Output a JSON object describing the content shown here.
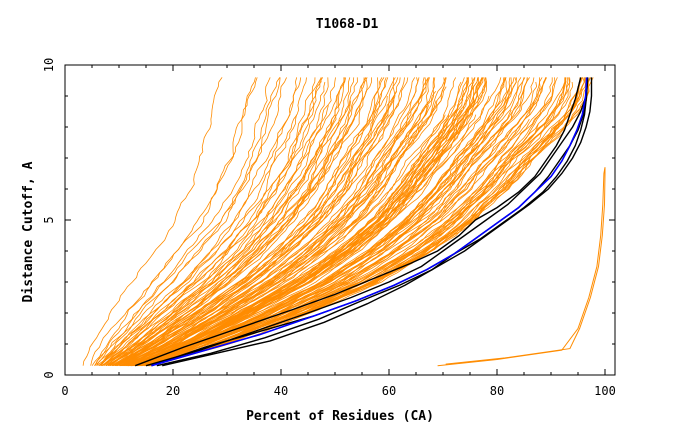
{
  "chart_data": {
    "type": "line",
    "title": "T1068-D1",
    "xlabel": "Percent of Residues (CA)",
    "ylabel": "Distance Cutoff, A",
    "xlim": [
      0,
      100
    ],
    "ylim": [
      0,
      10
    ],
    "x_ticks": [
      "0",
      "20",
      "40",
      "60",
      "80",
      "100"
    ],
    "y_ticks": [
      "0",
      "5",
      "10"
    ],
    "colors": {
      "bundle": "#ff8c00",
      "highlight": "#000000",
      "best": "#0000ff"
    },
    "ensemble_note": "about 150 orange model curves spanning the region between the left and right envelopes",
    "envelope_left": {
      "x": [
        3.5,
        5,
        8,
        12,
        16,
        20,
        23,
        25,
        26,
        27,
        28,
        29
      ],
      "y": [
        0.3,
        1.0,
        2.0,
        3.0,
        4.0,
        5.0,
        6.0,
        7.0,
        7.6,
        8.2,
        9.0,
        9.6
      ]
    },
    "envelope_right": {
      "x": [
        16,
        30,
        45,
        58,
        68,
        76,
        82,
        87,
        91,
        94,
        96,
        97,
        97.5,
        97.5
      ],
      "y": [
        0.3,
        1.0,
        2.0,
        3.0,
        4.0,
        5.0,
        6.0,
        7.0,
        7.7,
        8.3,
        8.8,
        9.2,
        9.5,
        9.6
      ]
    },
    "outlier_series": {
      "name": "outlier",
      "x": [
        69,
        80,
        92,
        95,
        97,
        98.5,
        99.2,
        99.6,
        99.8,
        100
      ],
      "y": [
        0.3,
        0.5,
        0.8,
        1.5,
        2.5,
        3.5,
        4.5,
        5.5,
        6.5,
        6.7
      ]
    },
    "series": [
      {
        "name": "black-1",
        "x": [
          15,
          25,
          35,
          45,
          53,
          60,
          66,
          70,
          74,
          78,
          82,
          85,
          88,
          90,
          92,
          94,
          95.5,
          96.5,
          96.8
        ],
        "y": [
          0.3,
          0.8,
          1.4,
          2.0,
          2.5,
          3.0,
          3.5,
          4.0,
          4.5,
          5.0,
          5.5,
          6.0,
          6.5,
          7.0,
          7.5,
          8.0,
          8.5,
          9.0,
          9.6
        ]
      },
      {
        "name": "black-2",
        "x": [
          13,
          22,
          32,
          42,
          50,
          57,
          64,
          69,
          73,
          76,
          80,
          84,
          87,
          89,
          91,
          92.5,
          93.5,
          94.5,
          95.5
        ],
        "y": [
          0.3,
          0.9,
          1.5,
          2.1,
          2.6,
          3.1,
          3.6,
          4.0,
          4.5,
          5.0,
          5.4,
          5.9,
          6.4,
          6.9,
          7.4,
          7.9,
          8.4,
          8.9,
          9.6
        ]
      },
      {
        "name": "black-3",
        "x": [
          17,
          27,
          37,
          47,
          55,
          62,
          68,
          72,
          76,
          80,
          84,
          87,
          89.5,
          91.5,
          93.5,
          95,
          96,
          96.5,
          96.8
        ],
        "y": [
          0.3,
          0.7,
          1.2,
          1.8,
          2.4,
          2.9,
          3.4,
          3.9,
          4.4,
          4.9,
          5.4,
          5.9,
          6.4,
          6.9,
          7.4,
          7.9,
          8.4,
          9.0,
          9.6
        ]
      },
      {
        "name": "black-4",
        "x": [
          16,
          26,
          36,
          46,
          54,
          61,
          67,
          72,
          77,
          81,
          85,
          88.5,
          91,
          93,
          94.5,
          95.5,
          96.2,
          96.6,
          96.8
        ],
        "y": [
          0.3,
          0.9,
          1.4,
          1.9,
          2.4,
          2.9,
          3.4,
          3.9,
          4.4,
          4.9,
          5.4,
          5.9,
          6.4,
          6.9,
          7.4,
          7.9,
          8.4,
          9.0,
          9.6
        ]
      },
      {
        "name": "black-5",
        "x": [
          18,
          28,
          38,
          48,
          56,
          63,
          69,
          74,
          78,
          82,
          86,
          89.5,
          92,
          94,
          95.5,
          96.5,
          97.2,
          97.5,
          97.5
        ],
        "y": [
          0.3,
          0.7,
          1.1,
          1.7,
          2.3,
          2.9,
          3.5,
          4.0,
          4.5,
          5.0,
          5.5,
          6.0,
          6.5,
          7.0,
          7.5,
          8.0,
          8.5,
          9.0,
          9.6
        ]
      },
      {
        "name": "blue",
        "x": [
          16,
          26,
          36,
          46,
          54,
          61,
          67,
          72,
          76,
          80,
          84,
          87,
          90,
          92,
          93.5,
          94.8,
          95.8,
          96.4,
          96.6
        ],
        "y": [
          0.3,
          0.8,
          1.3,
          1.9,
          2.4,
          2.9,
          3.4,
          3.9,
          4.4,
          4.9,
          5.4,
          5.9,
          6.4,
          6.9,
          7.4,
          7.9,
          8.4,
          9.0,
          9.6
        ]
      }
    ]
  }
}
